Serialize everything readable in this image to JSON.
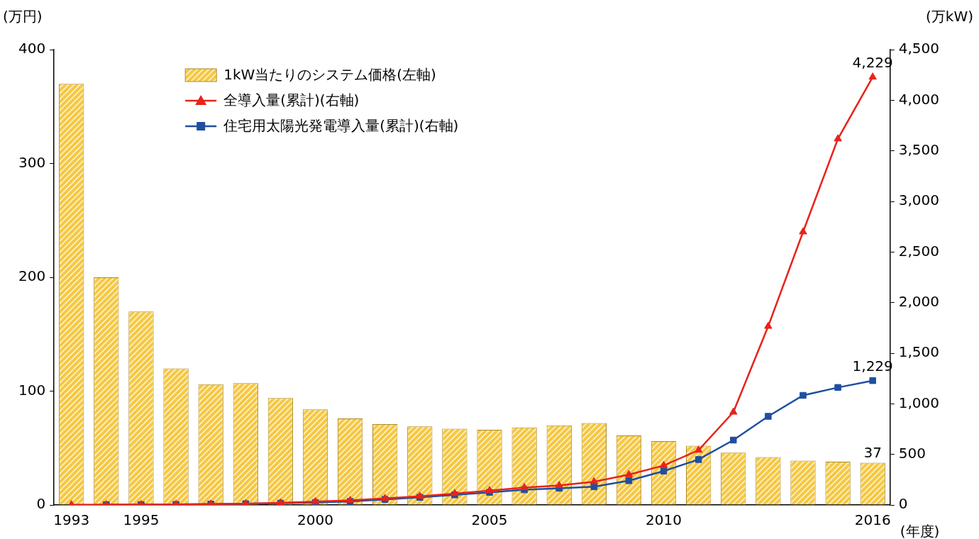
{
  "chart_data": {
    "type": "bar",
    "x_label": "(年度)",
    "y_label": "(万円)",
    "y2_label": "(万kW)",
    "categories": [
      "1993",
      null,
      "1995",
      null,
      null,
      null,
      null,
      "2000",
      null,
      null,
      null,
      null,
      "2005",
      null,
      null,
      null,
      null,
      "2010",
      null,
      null,
      null,
      null,
      null,
      "2016"
    ],
    "ylim": [
      0,
      400
    ],
    "yticks": [
      0,
      100,
      200,
      300,
      400
    ],
    "y2lim": [
      0,
      4500
    ],
    "y2ticks": [
      0,
      500,
      {
        "value": 1000,
        "label": "1,000"
      },
      {
        "value": 1500,
        "label": "1,500"
      },
      {
        "value": 2000,
        "label": "2,000"
      },
      {
        "value": 2500,
        "label": "2,500"
      },
      {
        "value": 3000,
        "label": "3,000"
      },
      {
        "value": 3500,
        "label": "3,500"
      },
      {
        "value": 4000,
        "label": "4,000"
      },
      {
        "value": 4500,
        "label": "4,500"
      }
    ],
    "grid": false,
    "legend": "upper left",
    "data_labels": true,
    "series": [
      {
        "name": "1kW当たりのシステム価格(左軸)",
        "type": "bar",
        "color": "#f5c842",
        "values": [
          370,
          200,
          170,
          120,
          106,
          107,
          94,
          84,
          76,
          71,
          69,
          67,
          66,
          68,
          70,
          72,
          61,
          56,
          52,
          46,
          42,
          39,
          38,
          37
        ],
        "value_labels": [
          null,
          null,
          null,
          null,
          null,
          null,
          null,
          null,
          null,
          null,
          null,
          null,
          null,
          null,
          null,
          null,
          null,
          null,
          null,
          null,
          null,
          null,
          null,
          "37"
        ]
      },
      {
        "name": "全導入量(累計)(右軸)",
        "type": "line",
        "axis": "y2",
        "color": "#e8231a",
        "marker": "triangle",
        "values": [
          2.4,
          3,
          4,
          6,
          9,
          13,
          21,
          33,
          45,
          64,
          86,
          113,
          142,
          171,
          192,
          230,
          300,
          390,
          541,
          918,
          1766,
          2699,
          3618,
          4229
        ],
        "value_labels": [
          null,
          null,
          null,
          null,
          null,
          null,
          null,
          null,
          null,
          null,
          null,
          null,
          null,
          null,
          null,
          null,
          null,
          null,
          null,
          null,
          null,
          null,
          null,
          "4,229"
        ]
      },
      {
        "name": "住宅用太陽光発電導入量(累計)(右軸)",
        "type": "line",
        "axis": "y2",
        "color": "#1f4fa0",
        "marker": "square",
        "values": [
          null,
          2,
          3,
          5,
          8,
          12,
          18,
          25,
          35,
          55,
          75,
          100,
          125,
          150,
          165,
          180,
          240,
          335,
          449,
          641,
          876,
          1083,
          1161,
          1229
        ],
        "value_labels": [
          null,
          null,
          null,
          null,
          null,
          null,
          null,
          null,
          null,
          null,
          null,
          null,
          null,
          null,
          null,
          null,
          null,
          null,
          null,
          null,
          null,
          null,
          null,
          "1,229"
        ]
      }
    ]
  }
}
